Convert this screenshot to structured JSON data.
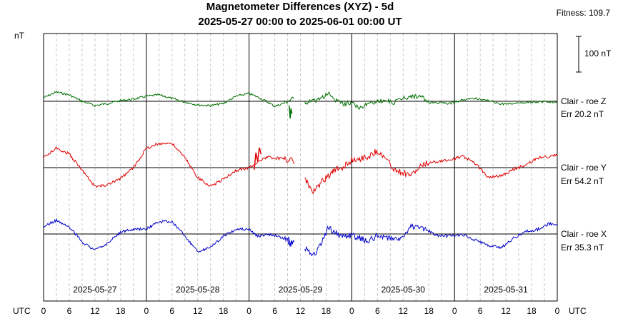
{
  "chart_data": {
    "type": "line",
    "title": "Magnetometer Differences (XYZ) - 5d",
    "subtitle": "2025-05-27 00:00 to 2025-06-01 00:00 UT",
    "fitness_label": "Fitness: 109.7",
    "ylabel": "nT",
    "xlabel_left": "UTC",
    "xlabel_right": "UTC",
    "scale_bar_label": "100 nT",
    "scale_bar_nT": 100,
    "xlim_hours": [
      0,
      120
    ],
    "x_tick_labels": [
      "0",
      "6",
      "12",
      "18",
      "0",
      "6",
      "12",
      "18",
      "0",
      "6",
      "12",
      "18",
      "0",
      "6",
      "12",
      "18",
      "0",
      "6",
      "12",
      "18",
      "0"
    ],
    "day_labels": [
      "2025-05-27",
      "2025-05-28",
      "2025-05-29",
      "2025-05-30",
      "2025-05-31"
    ],
    "grid": "dashed every 3 hours, solid at day boundaries",
    "series": [
      {
        "name": "Clair - roe Z",
        "err_label": "Err 20.2 nT",
        "color": "#007000",
        "baseline_label": "Clair - roe Z",
        "points_hours_nT": [
          [
            0,
            10
          ],
          [
            3,
            26
          ],
          [
            6,
            18
          ],
          [
            9,
            0
          ],
          [
            12,
            -12
          ],
          [
            15,
            -6
          ],
          [
            18,
            2
          ],
          [
            21,
            6
          ],
          [
            24,
            14
          ],
          [
            27,
            18
          ],
          [
            30,
            8
          ],
          [
            33,
            -2
          ],
          [
            36,
            -10
          ],
          [
            39,
            -12
          ],
          [
            42,
            -6
          ],
          [
            45,
            14
          ],
          [
            48,
            22
          ],
          [
            50,
            12
          ],
          [
            52,
            0
          ],
          [
            54,
            -14
          ],
          [
            56,
            -6
          ],
          [
            57,
            0
          ],
          [
            58,
            6
          ],
          [
            58.5,
            8
          ],
          [
            60.5,
            null
          ],
          [
            61,
            -4
          ],
          [
            63,
            0
          ],
          [
            65,
            10
          ],
          [
            66.5,
            22
          ],
          [
            68,
            4
          ],
          [
            70,
            -8
          ],
          [
            72,
            -2
          ],
          [
            74,
            -20
          ],
          [
            76,
            -6
          ],
          [
            78,
            0
          ],
          [
            80,
            2
          ],
          [
            82,
            -4
          ],
          [
            84,
            10
          ],
          [
            86,
            14
          ],
          [
            88,
            14
          ],
          [
            90,
            -4
          ],
          [
            92,
            -4
          ],
          [
            95,
            -6
          ],
          [
            98,
            5
          ],
          [
            101,
            8
          ],
          [
            104,
            2
          ],
          [
            107,
            -8
          ],
          [
            110,
            -6
          ],
          [
            113,
            -2
          ],
          [
            116,
            -1
          ],
          [
            118,
            -2
          ],
          [
            120,
            -2
          ]
        ],
        "disturbance": [
          [
            57.4,
            -12
          ],
          [
            57.6,
            -48
          ],
          [
            57.8,
            -20
          ],
          [
            58,
            -35
          ]
        ]
      },
      {
        "name": "Clair - roe Y",
        "err_label": "Err 54.2 nT",
        "color": "#e00000",
        "baseline_label": "Clair - roe Y",
        "points_hours_nT": [
          [
            0,
            28
          ],
          [
            3,
            55
          ],
          [
            6,
            38
          ],
          [
            9,
            -6
          ],
          [
            12,
            -54
          ],
          [
            15,
            -48
          ],
          [
            18,
            -30
          ],
          [
            21,
            0
          ],
          [
            24,
            54
          ],
          [
            27,
            68
          ],
          [
            30,
            68
          ],
          [
            33,
            28
          ],
          [
            36,
            -28
          ],
          [
            39,
            -52
          ],
          [
            42,
            -32
          ],
          [
            45,
            -8
          ],
          [
            48,
            0
          ],
          [
            50,
            16
          ],
          [
            52,
            28
          ],
          [
            54,
            28
          ],
          [
            56,
            24
          ],
          [
            58,
            22
          ],
          [
            58.5,
            10
          ],
          [
            60.5,
            null
          ],
          [
            61,
            -30
          ],
          [
            63,
            -70
          ],
          [
            65,
            -40
          ],
          [
            66.5,
            -24
          ],
          [
            68,
            -8
          ],
          [
            70,
            2
          ],
          [
            72,
            22
          ],
          [
            74,
            26
          ],
          [
            76,
            32
          ],
          [
            78,
            48
          ],
          [
            80,
            24
          ],
          [
            82,
            -6
          ],
          [
            84,
            -14
          ],
          [
            86,
            -20
          ],
          [
            88,
            2
          ],
          [
            90,
            14
          ],
          [
            92,
            18
          ],
          [
            95,
            22
          ],
          [
            98,
            32
          ],
          [
            101,
            10
          ],
          [
            104,
            -28
          ],
          [
            107,
            -22
          ],
          [
            110,
            -4
          ],
          [
            113,
            10
          ],
          [
            116,
            30
          ],
          [
            118,
            30
          ],
          [
            120,
            36
          ]
        ],
        "disturbance": [
          [
            49.2,
            -6
          ],
          [
            49.6,
            42
          ],
          [
            50,
            18
          ],
          [
            50.4,
            56
          ],
          [
            50.8,
            38
          ]
        ]
      },
      {
        "name": "Clair - roe X",
        "err_label": "Err 35.3 nT",
        "color": "#0000cc",
        "baseline_label": "Clair - roe X",
        "points_hours_nT": [
          [
            0,
            20
          ],
          [
            3,
            38
          ],
          [
            6,
            20
          ],
          [
            9,
            -22
          ],
          [
            12,
            -46
          ],
          [
            15,
            -26
          ],
          [
            18,
            6
          ],
          [
            21,
            12
          ],
          [
            24,
            14
          ],
          [
            27,
            34
          ],
          [
            30,
            36
          ],
          [
            33,
            -6
          ],
          [
            36,
            -48
          ],
          [
            39,
            -38
          ],
          [
            42,
            -6
          ],
          [
            45,
            14
          ],
          [
            48,
            12
          ],
          [
            50,
            -6
          ],
          [
            52,
            -2
          ],
          [
            54,
            -4
          ],
          [
            56,
            -12
          ],
          [
            58,
            -26
          ],
          [
            58.5,
            -22
          ],
          [
            60.5,
            null
          ],
          [
            61,
            -40
          ],
          [
            63,
            -62
          ],
          [
            65,
            -26
          ],
          [
            66.5,
            20
          ],
          [
            68,
            2
          ],
          [
            70,
            -6
          ],
          [
            72,
            -4
          ],
          [
            74,
            -12
          ],
          [
            76,
            -20
          ],
          [
            78,
            -4
          ],
          [
            80,
            -10
          ],
          [
            82,
            -10
          ],
          [
            84,
            -10
          ],
          [
            86,
            22
          ],
          [
            88,
            20
          ],
          [
            90,
            8
          ],
          [
            92,
            -4
          ],
          [
            95,
            -6
          ],
          [
            98,
            -2
          ],
          [
            101,
            -18
          ],
          [
            104,
            -32
          ],
          [
            107,
            -38
          ],
          [
            110,
            -10
          ],
          [
            113,
            8
          ],
          [
            116,
            14
          ],
          [
            118,
            28
          ],
          [
            120,
            28
          ]
        ],
        "disturbance": [
          [
            57.2,
            -8
          ],
          [
            57.6,
            -32
          ],
          [
            58,
            -18
          ]
        ]
      }
    ]
  }
}
